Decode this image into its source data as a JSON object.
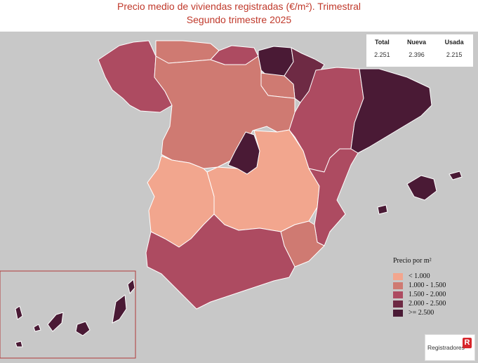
{
  "title": {
    "line1": "Precio medio de viviendas registradas (€/m²). Trimestral",
    "line2": "Segundo trimestre 2025"
  },
  "summary": {
    "headers": [
      "Total",
      "Nueva",
      "Usada"
    ],
    "values": [
      "2.251",
      "2.396",
      "2.215"
    ]
  },
  "legend": {
    "title": "Precio por m²",
    "items": [
      {
        "label": "< 1.000",
        "color": "#f2a68e"
      },
      {
        "label": "1.000 - 1.500",
        "color": "#cf7a72"
      },
      {
        "label": "1.500 - 2.000",
        "color": "#ad4b61"
      },
      {
        "label": "2.000 - 2.500",
        "color": "#6e2a44"
      },
      {
        "label": ">= 2.500",
        "color": "#4a1a35"
      }
    ]
  },
  "regions": [
    {
      "name": "Galicia",
      "class": 2
    },
    {
      "name": "Asturias",
      "class": 1
    },
    {
      "name": "Cantabria",
      "class": 2
    },
    {
      "name": "País Vasco",
      "class": 4
    },
    {
      "name": "Navarra",
      "class": 3
    },
    {
      "name": "La Rioja",
      "class": 1
    },
    {
      "name": "Aragón",
      "class": 2
    },
    {
      "name": "Cataluña",
      "class": 4
    },
    {
      "name": "Castilla y León",
      "class": 1
    },
    {
      "name": "Madrid",
      "class": 4
    },
    {
      "name": "Castilla-La Mancha",
      "class": 0
    },
    {
      "name": "Extremadura",
      "class": 0
    },
    {
      "name": "Comunidad Valenciana",
      "class": 2
    },
    {
      "name": "Murcia",
      "class": 1
    },
    {
      "name": "Andalucía",
      "class": 2
    },
    {
      "name": "Baleares",
      "class": 4
    },
    {
      "name": "Canarias",
      "class": 4
    }
  ],
  "logo": {
    "text": "Registradores",
    "mark": "R"
  },
  "colors": {
    "background": "#c8c8c8",
    "title": "#c0392b",
    "frame": "#b03a3a"
  }
}
